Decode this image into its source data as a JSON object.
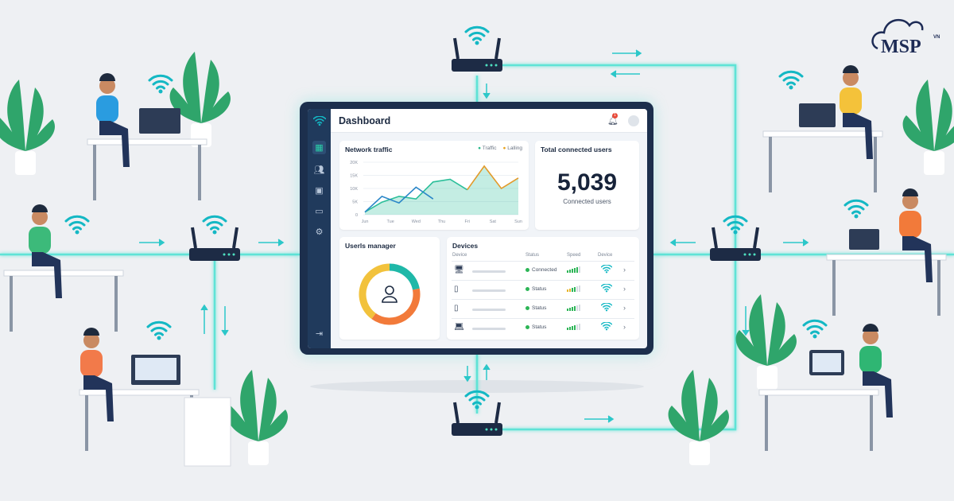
{
  "brand": {
    "logo_text": "MSP",
    "logo_sup": "VN"
  },
  "dashboard": {
    "title": "Dashboard",
    "notification_count": "1",
    "traffic": {
      "title": "Network traffic",
      "legend": [
        {
          "name": "Traffic",
          "color": "#27b98a"
        },
        {
          "name": "Lalling",
          "color": "#e8a21e"
        }
      ],
      "y_ticks": [
        "20K",
        "15K",
        "10K",
        "5K",
        "0"
      ],
      "x_ticks": [
        "Jun",
        "Tue",
        "Wed",
        "Thu",
        "Fri",
        "Sat",
        "Sun"
      ],
      "ylim": [
        0,
        20
      ],
      "traffic_values": [
        1,
        4.8,
        7,
        6,
        12.5,
        13.5,
        9.5,
        18.5,
        10,
        14
      ],
      "blue_values": [
        1,
        7,
        4.5,
        10.5,
        6
      ],
      "colors": {
        "traffic": "#2cbf9a",
        "blue": "#2a86c8",
        "orange": "#e39a2a"
      }
    },
    "total": {
      "title": "Total connected users",
      "value": "5,039",
      "label": "Connected users"
    },
    "users": {
      "title": "Userls manager",
      "ring": [
        {
          "share": 0.22,
          "color": "#1fb8a8"
        },
        {
          "share": 0.38,
          "color": "#f27a3a"
        },
        {
          "share": 0.4,
          "color": "#f2c23c"
        }
      ]
    },
    "devices": {
      "title": "Devices",
      "headers": [
        "Device",
        "Status",
        "Speed",
        "Device"
      ],
      "rows": [
        {
          "icon": "monitor-icon",
          "status": "Connected",
          "signal": 5
        },
        {
          "icon": "phone-icon",
          "status": "Status",
          "signal": 4
        },
        {
          "icon": "phone-icon",
          "status": "Status",
          "signal": 4
        },
        {
          "icon": "laptop-icon",
          "status": "Status",
          "signal": 4
        }
      ]
    }
  }
}
